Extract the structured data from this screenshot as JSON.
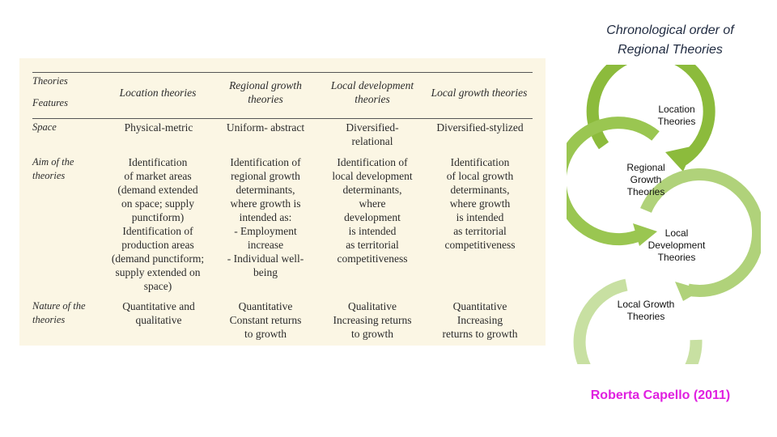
{
  "table": {
    "header": {
      "theories_label": "Theories",
      "features_label": "Features",
      "columns": [
        "Location theories",
        "Regional growth\ntheories",
        "Local development\ntheories",
        "Local growth theories"
      ]
    },
    "rows": [
      {
        "feature": "Space",
        "cells": [
          "Physical-metric",
          "Uniform- abstract",
          "Diversified-\nrelational",
          "Diversified-stylized"
        ]
      },
      {
        "feature": "Aim of the\ntheories",
        "cells": [
          "Identification\nof market areas\n(demand extended\non space; supply\npunctiform)\nIdentification of\nproduction areas\n(demand punctiform;\nsupply extended on\nspace)",
          "Identification of\nregional growth\ndeterminants,\nwhere growth is\nintended as:\n- Employment\nincrease\n- Individual well-\nbeing",
          "Identification of\nlocal development\ndeterminants,\nwhere\ndevelopment\nis intended\nas territorial\ncompetitiveness",
          "Identification\nof local growth\ndeterminants,\nwhere growth\nis intended\nas territorial\ncompetitiveness"
        ]
      },
      {
        "feature": "Nature of the\ntheories",
        "cells": [
          "Quantitative and\nqualitative",
          "Quantitative\nConstant returns\nto growth",
          "Qualitative\nIncreasing returns\nto growth",
          "Quantitative\nIncreasing\nreturns to growth"
        ]
      }
    ]
  },
  "diagram": {
    "title": "Chronological order of\nRegional Theories",
    "stages": [
      {
        "label": "Location\nTheories",
        "color": "#8cbb3c"
      },
      {
        "label": "Regional\nGrowth\nTheories",
        "color": "#9ac651"
      },
      {
        "label": "Local\nDevelopment\nTheories",
        "color": "#b0d27a"
      },
      {
        "label": "Local Growth\nTheories",
        "color": "#c8e0a2"
      }
    ]
  },
  "citation": "Roberta Capello (2011)"
}
